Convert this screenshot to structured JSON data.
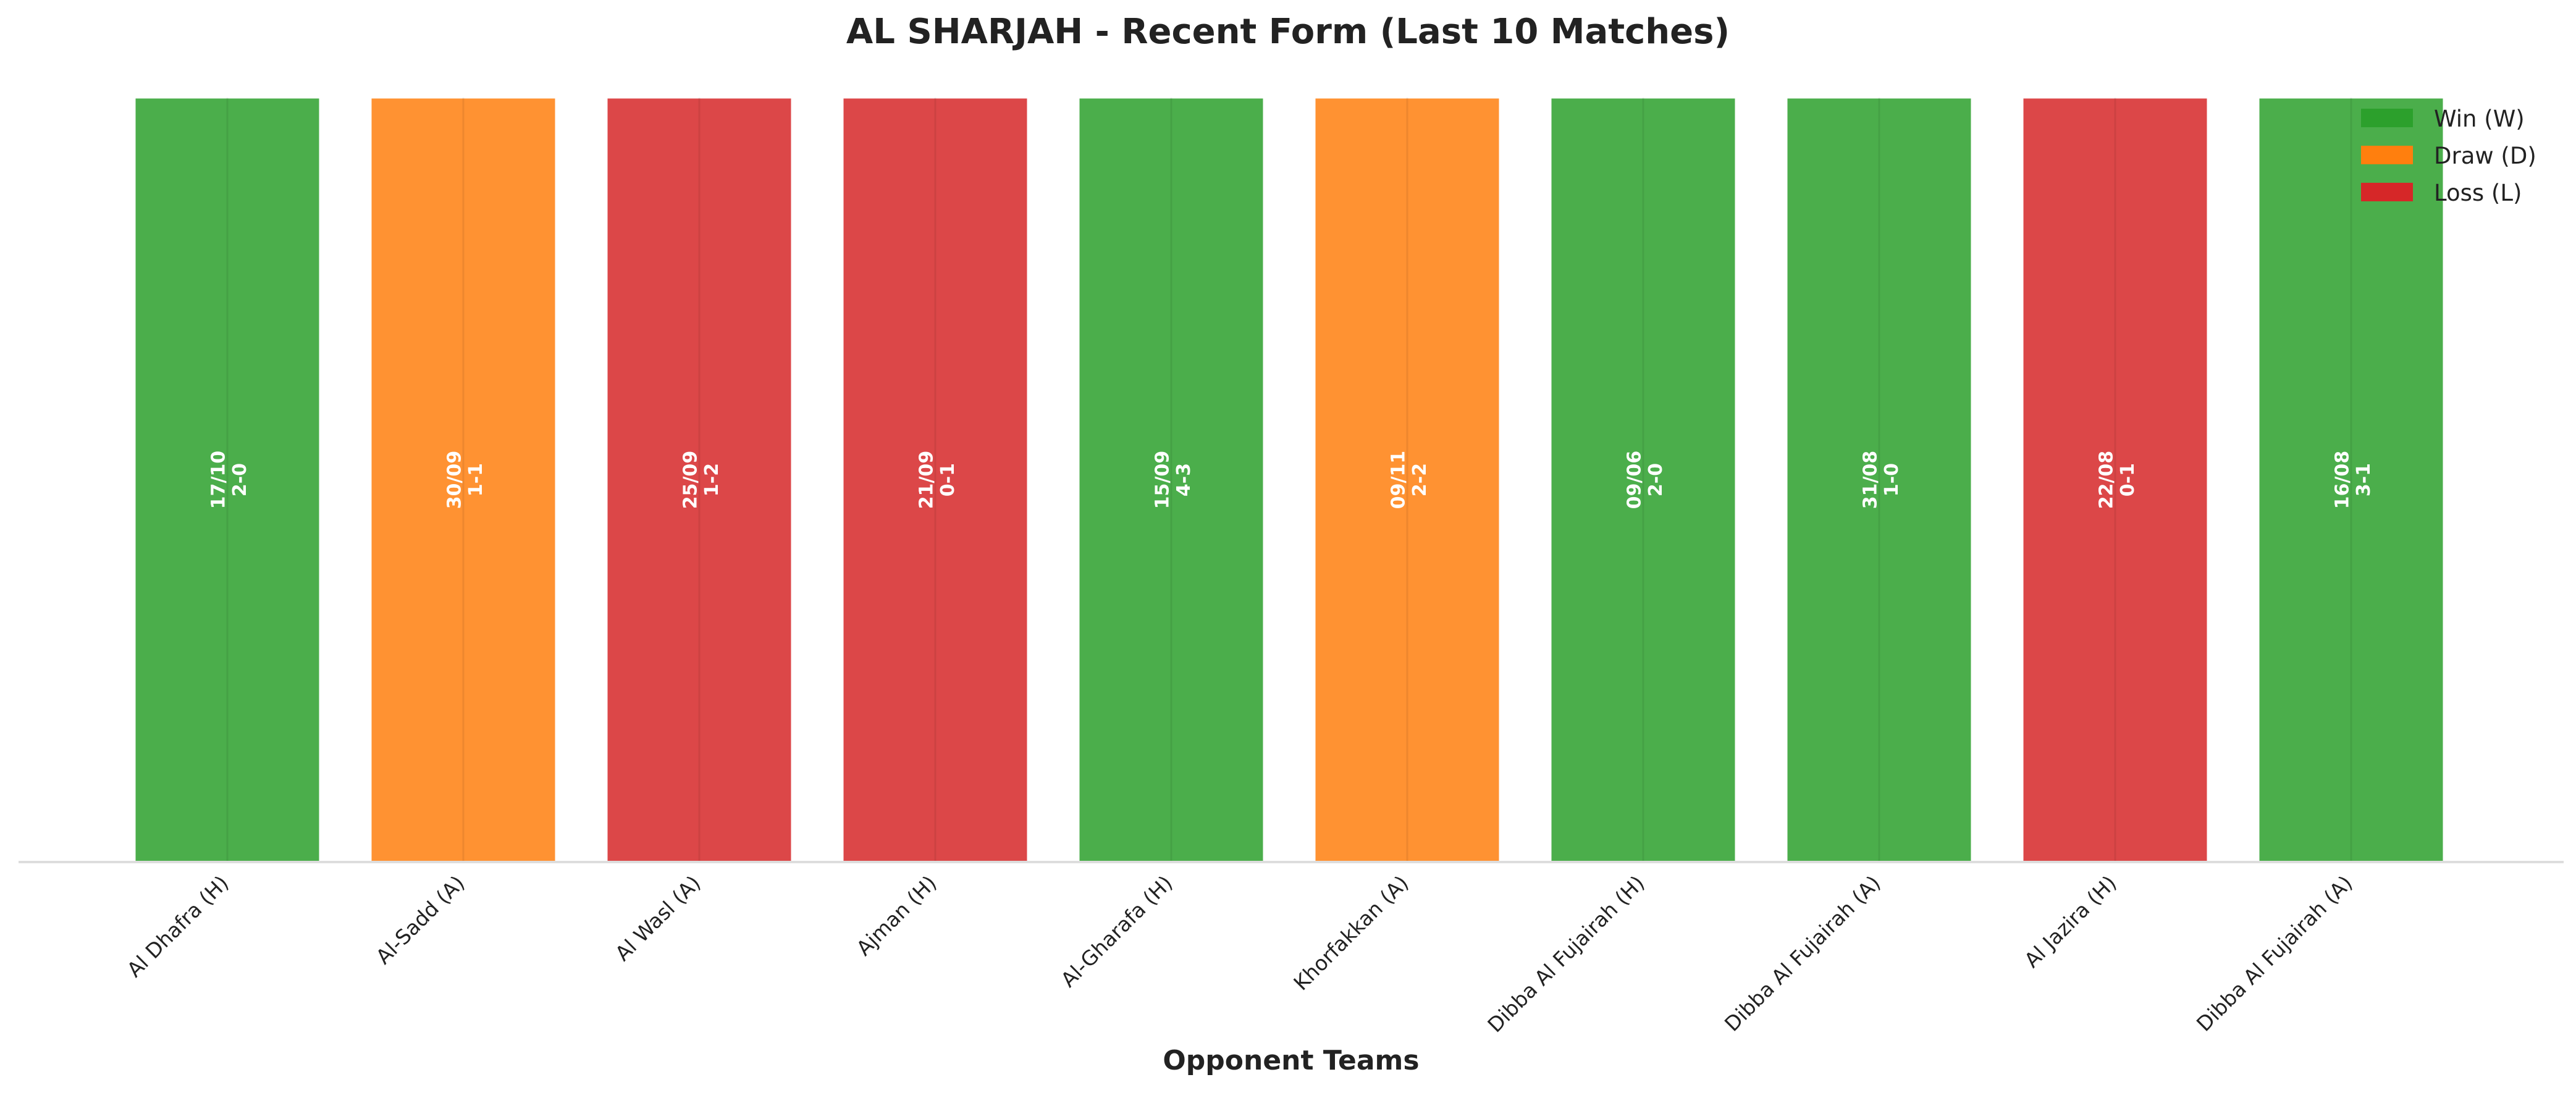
{
  "chart_data": {
    "type": "bar",
    "title": "AL SHARJAH - Recent Form (Last 10 Matches)",
    "xlabel": "Opponent Teams",
    "ylabel": "",
    "categories": [
      "Al Dhafra (H)",
      "Al-Sadd (A)",
      "Al Wasl (A)",
      "Ajman (H)",
      "Al-Gharafa (H)",
      "Khorfakkan (A)",
      "Dibba Al Fujairah (H)",
      "Dibba Al Fujairah (A)",
      "Al Jazira (H)",
      "Dibba Al Fujairah (A)"
    ],
    "values": [
      1,
      1,
      1,
      1,
      1,
      1,
      1,
      1,
      1,
      1
    ],
    "results": [
      "W",
      "D",
      "L",
      "L",
      "W",
      "D",
      "W",
      "W",
      "L",
      "W"
    ],
    "dates": [
      "17/10",
      "30/09",
      "25/09",
      "21/09",
      "15/09",
      "09/11",
      "09/06",
      "31/08",
      "22/08",
      "16/08"
    ],
    "scores": [
      "2-0",
      "1-1",
      "1-2",
      "0-1",
      "4-3",
      "2-2",
      "2-0",
      "1-0",
      "0-1",
      "3-1"
    ],
    "ylim": [
      0,
      1
    ],
    "grid": false,
    "legend": {
      "placement": "top-right",
      "entries": [
        {
          "key": "W",
          "label": "Win (W)"
        },
        {
          "key": "D",
          "label": "Draw (D)"
        },
        {
          "key": "L",
          "label": "Loss (L)"
        }
      ]
    },
    "colors": {
      "W": "#2ca02c",
      "D": "#ff7f0e",
      "L": "#d62728"
    }
  }
}
